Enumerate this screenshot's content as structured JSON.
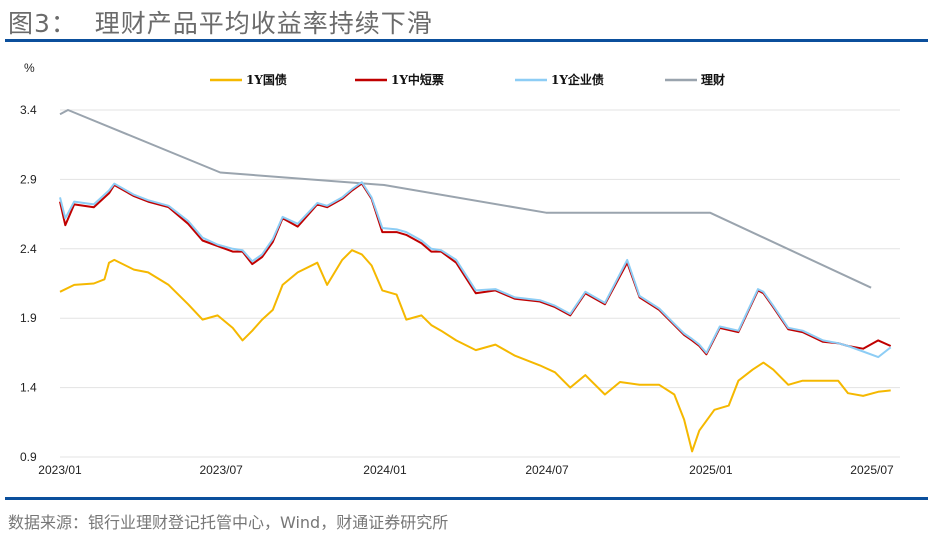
{
  "header": {
    "title": "图3：  理财产品平均收益率持续下滑"
  },
  "footer": {
    "source": "数据来源：银行业理财登记托管中心，Wind，财通证券研究所"
  },
  "colors": {
    "rule": "#0b4f9c"
  },
  "chart_data": {
    "type": "line",
    "title": "",
    "ylabel": "%",
    "ylim": [
      0.9,
      3.4
    ],
    "yticks": [
      "0.9",
      "1.4",
      "1.9",
      "2.4",
      "2.9",
      "3.4"
    ],
    "xticks": [
      "2023/01",
      "2023/07",
      "2024/01",
      "2024/07",
      "2025/01",
      "2025/07"
    ],
    "xlim": [
      "2023-01-01",
      "2025-07-31"
    ],
    "grid": "horizontal",
    "legend": "top",
    "series": [
      {
        "name": "1Y国债",
        "color": "#F5B800",
        "x": [
          "2023-01-01",
          "2023-01-17",
          "2023-02-08",
          "2023-02-20",
          "2023-02-25",
          "2023-03-03",
          "2023-03-25",
          "2023-04-10",
          "2023-05-03",
          "2023-05-25",
          "2023-06-10",
          "2023-06-27",
          "2023-07-14",
          "2023-07-25",
          "2023-08-05",
          "2023-08-16",
          "2023-08-28",
          "2023-09-08",
          "2023-09-25",
          "2023-10-17",
          "2023-10-28",
          "2023-11-14",
          "2023-11-25",
          "2023-12-06",
          "2023-12-17",
          "2023-12-29",
          "2024-01-14",
          "2024-01-25",
          "2024-02-11",
          "2024-02-22",
          "2024-03-04",
          "2024-03-21",
          "2024-04-12",
          "2024-05-04",
          "2024-05-26",
          "2024-06-23",
          "2024-07-10",
          "2024-07-27",
          "2024-08-13",
          "2024-09-04",
          "2024-09-21",
          "2024-10-13",
          "2024-11-04",
          "2024-11-21",
          "2024-12-02",
          "2024-12-11",
          "2024-12-19",
          "2025-01-05",
          "2025-01-21",
          "2025-02-01",
          "2025-02-17",
          "2025-03-01",
          "2025-03-12",
          "2025-03-29",
          "2025-04-14",
          "2025-05-07",
          "2025-05-24",
          "2025-06-04",
          "2025-06-21",
          "2025-07-08",
          "2025-07-22"
        ],
        "y": [
          2.09,
          2.14,
          2.15,
          2.18,
          2.3,
          2.32,
          2.25,
          2.23,
          2.14,
          2.0,
          1.89,
          1.92,
          1.83,
          1.74,
          1.81,
          1.89,
          1.96,
          2.14,
          2.23,
          2.3,
          2.14,
          2.32,
          2.39,
          2.36,
          2.28,
          2.1,
          2.07,
          1.89,
          1.92,
          1.85,
          1.81,
          1.74,
          1.67,
          1.71,
          1.63,
          1.56,
          1.51,
          1.4,
          1.49,
          1.35,
          1.44,
          1.42,
          1.42,
          1.35,
          1.17,
          0.94,
          1.09,
          1.24,
          1.27,
          1.45,
          1.53,
          1.58,
          1.53,
          1.42,
          1.45,
          1.45,
          1.45,
          1.36,
          1.34,
          1.37,
          1.38
        ]
      },
      {
        "name": "1Y中短票",
        "color": "#C00000",
        "x": [
          "2023-01-01",
          "2023-01-07",
          "2023-01-17",
          "2023-02-08",
          "2023-02-25",
          "2023-03-03",
          "2023-03-25",
          "2023-04-10",
          "2023-05-03",
          "2023-05-25",
          "2023-06-10",
          "2023-06-27",
          "2023-07-14",
          "2023-07-25",
          "2023-08-05",
          "2023-08-16",
          "2023-08-28",
          "2023-09-08",
          "2023-09-25",
          "2023-10-17",
          "2023-10-28",
          "2023-11-14",
          "2023-11-25",
          "2023-12-06",
          "2023-12-17",
          "2023-12-29",
          "2024-01-14",
          "2024-01-25",
          "2024-02-11",
          "2024-02-22",
          "2024-03-04",
          "2024-03-21",
          "2024-04-12",
          "2024-05-04",
          "2024-05-26",
          "2024-06-23",
          "2024-07-10",
          "2024-07-27",
          "2024-08-13",
          "2024-09-04",
          "2024-09-29",
          "2024-10-13",
          "2024-11-04",
          "2024-11-21",
          "2024-12-02",
          "2024-12-11",
          "2024-12-19",
          "2024-12-27",
          "2025-01-11",
          "2025-02-01",
          "2025-02-23",
          "2025-03-01",
          "2025-03-12",
          "2025-03-29",
          "2025-04-14",
          "2025-05-07",
          "2025-05-24",
          "2025-06-04",
          "2025-06-21",
          "2025-07-08",
          "2025-07-22"
        ],
        "y": [
          2.74,
          2.57,
          2.72,
          2.7,
          2.8,
          2.86,
          2.78,
          2.74,
          2.7,
          2.58,
          2.46,
          2.42,
          2.38,
          2.38,
          2.29,
          2.34,
          2.45,
          2.62,
          2.56,
          2.72,
          2.7,
          2.76,
          2.82,
          2.87,
          2.76,
          2.52,
          2.52,
          2.5,
          2.44,
          2.38,
          2.38,
          2.3,
          2.08,
          2.1,
          2.04,
          2.02,
          1.98,
          1.92,
          2.08,
          2.0,
          2.3,
          2.05,
          1.96,
          1.85,
          1.78,
          1.74,
          1.7,
          1.64,
          1.83,
          1.8,
          2.1,
          2.08,
          1.98,
          1.82,
          1.8,
          1.73,
          1.72,
          1.7,
          1.68,
          1.74,
          1.7
        ]
      },
      {
        "name": "1Y企业债",
        "color": "#8DCDF5",
        "x": [
          "2023-01-01",
          "2023-01-07",
          "2023-01-17",
          "2023-02-08",
          "2023-02-25",
          "2023-03-03",
          "2023-03-25",
          "2023-04-10",
          "2023-05-03",
          "2023-05-25",
          "2023-06-10",
          "2023-06-27",
          "2023-07-14",
          "2023-07-25",
          "2023-08-05",
          "2023-08-16",
          "2023-08-28",
          "2023-09-08",
          "2023-09-25",
          "2023-10-17",
          "2023-10-28",
          "2023-11-14",
          "2023-11-25",
          "2023-12-06",
          "2023-12-17",
          "2023-12-29",
          "2024-01-14",
          "2024-01-25",
          "2024-02-11",
          "2024-02-22",
          "2024-03-04",
          "2024-03-21",
          "2024-04-12",
          "2024-05-04",
          "2024-05-26",
          "2024-06-23",
          "2024-07-10",
          "2024-07-27",
          "2024-08-13",
          "2024-09-04",
          "2024-09-29",
          "2024-10-13",
          "2024-11-04",
          "2024-11-21",
          "2024-12-02",
          "2024-12-11",
          "2024-12-19",
          "2024-12-27",
          "2025-01-11",
          "2025-02-01",
          "2025-02-23",
          "2025-03-01",
          "2025-03-12",
          "2025-03-29",
          "2025-04-14",
          "2025-05-07",
          "2025-05-24",
          "2025-06-04",
          "2025-06-21",
          "2025-07-08",
          "2025-07-22"
        ],
        "y": [
          2.77,
          2.62,
          2.74,
          2.72,
          2.82,
          2.87,
          2.79,
          2.75,
          2.71,
          2.6,
          2.48,
          2.43,
          2.4,
          2.39,
          2.31,
          2.36,
          2.47,
          2.63,
          2.58,
          2.73,
          2.71,
          2.77,
          2.83,
          2.88,
          2.77,
          2.55,
          2.54,
          2.52,
          2.46,
          2.4,
          2.39,
          2.32,
          2.1,
          2.11,
          2.05,
          2.03,
          1.99,
          1.93,
          2.09,
          2.01,
          2.32,
          2.06,
          1.97,
          1.86,
          1.79,
          1.75,
          1.71,
          1.65,
          1.84,
          1.81,
          2.11,
          2.09,
          1.99,
          1.83,
          1.81,
          1.74,
          1.72,
          1.7,
          1.66,
          1.62,
          1.69
        ]
      },
      {
        "name": "理财",
        "color": "#9AA4AE",
        "x": [
          "2023-01-01",
          "2023-01-10",
          "2023-06-30",
          "2023-12-31",
          "2024-06-30",
          "2024-12-31",
          "2025-06-30"
        ],
        "y": [
          3.37,
          3.4,
          2.95,
          2.86,
          2.66,
          2.66,
          2.12
        ]
      }
    ]
  }
}
